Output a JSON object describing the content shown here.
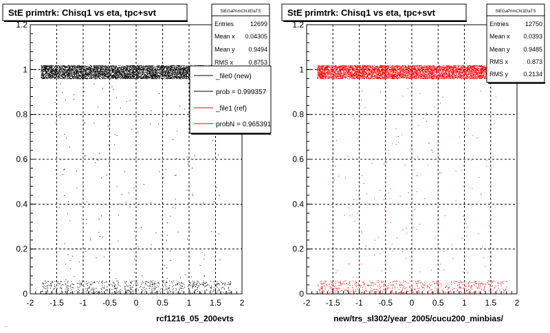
{
  "footer_fragment": "...",
  "chart_data": [
    {
      "type": "scatter",
      "title": "StE primtrk: Chisq1  vs eta, tpc+svt",
      "xlabel": "rcf1216_05_200evts",
      "ylabel": "",
      "xlim": [
        -2,
        2
      ],
      "ylim": [
        0,
        1.2
      ],
      "x_ticks": [
        "-2",
        "-1.5",
        "-1",
        "-0.5",
        "0",
        "0.5",
        "1",
        "1.5",
        "2"
      ],
      "y_ticks": [
        "0",
        "0.2",
        "0.4",
        "0.6",
        "0.8",
        "1",
        "1.2"
      ],
      "grid": true,
      "point_color": "#000000",
      "stats": {
        "name": "StEGaPrimChi1EtaTS",
        "rows": [
          {
            "label": "Entries",
            "value": "12699"
          },
          {
            "label": "Mean x",
            "value": "0.04305"
          },
          {
            "label": "Mean y",
            "value": "0.9494"
          },
          {
            "label": "RMS x",
            "value": "0.8753"
          }
        ]
      },
      "legend": {
        "position": "top-right",
        "entries": [
          {
            "label": "_file0 (new)",
            "color": "#000000"
          },
          {
            "label": "prob = 0.999357",
            "color": "#000000"
          },
          {
            "label": "_file1 (ref)",
            "color": "#ff0000"
          },
          {
            "label": "probN = 0.965391",
            "color": "#ff0000"
          }
        ]
      },
      "series": [
        {
          "points_description": "dense band",
          "x_range": [
            -1.8,
            1.8
          ],
          "y_band": [
            0.96,
            1.02
          ],
          "sparse_y_band": [
            0.0,
            0.06
          ],
          "entries": 12699
        }
      ]
    },
    {
      "type": "scatter",
      "title": "StE primtrk: Chisq1  vs eta, tpc+svt",
      "xlabel": "new/trs_sl302/year_2005/cucu200_minbias/",
      "ylabel": "",
      "xlim": [
        -2,
        2
      ],
      "ylim": [
        0,
        1.2
      ],
      "x_ticks": [
        "-2",
        "-1.5",
        "-1",
        "-0.5",
        "0",
        "0.5",
        "1",
        "1.5",
        "2"
      ],
      "y_ticks": [
        "0",
        "0.2",
        "0.4",
        "0.6",
        "0.8",
        "1",
        "1.2"
      ],
      "grid": true,
      "point_color": "#ff0000",
      "stats": {
        "name": "StEGaPrimChi1EtaTS",
        "rows": [
          {
            "label": "Entries",
            "value": "12750"
          },
          {
            "label": "Mean x",
            "value": "0.0393"
          },
          {
            "label": "Mean y",
            "value": "0.9485"
          },
          {
            "label": "RMS x",
            "value": "0.873"
          },
          {
            "label": "RMS y",
            "value": "0.2134"
          }
        ]
      },
      "series": [
        {
          "points_description": "dense band",
          "x_range": [
            -1.8,
            1.8
          ],
          "y_band": [
            0.96,
            1.02
          ],
          "sparse_y_band": [
            0.0,
            0.06
          ],
          "entries": 12750
        }
      ]
    }
  ]
}
